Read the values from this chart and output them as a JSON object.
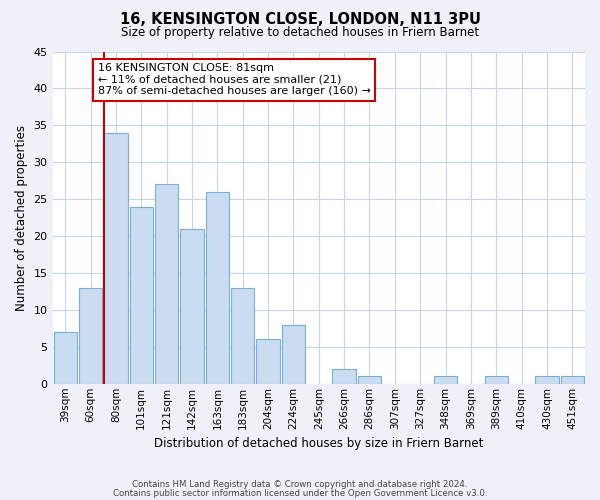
{
  "title": "16, KENSINGTON CLOSE, LONDON, N11 3PU",
  "subtitle": "Size of property relative to detached houses in Friern Barnet",
  "xlabel": "Distribution of detached houses by size in Friern Barnet",
  "ylabel": "Number of detached properties",
  "bin_labels": [
    "39sqm",
    "60sqm",
    "80sqm",
    "101sqm",
    "121sqm",
    "142sqm",
    "163sqm",
    "183sqm",
    "204sqm",
    "224sqm",
    "245sqm",
    "266sqm",
    "286sqm",
    "307sqm",
    "327sqm",
    "348sqm",
    "369sqm",
    "389sqm",
    "410sqm",
    "430sqm",
    "451sqm"
  ],
  "bin_values": [
    7,
    13,
    34,
    24,
    27,
    21,
    26,
    13,
    6,
    8,
    0,
    2,
    1,
    0,
    0,
    1,
    0,
    1,
    0,
    1,
    1
  ],
  "bar_color": "#c9dcf0",
  "bar_edge_color": "#7aafd4",
  "property_line_color": "#cc0000",
  "annotation_text": "16 KENSINGTON CLOSE: 81sqm\n← 11% of detached houses are smaller (21)\n87% of semi-detached houses are larger (160) →",
  "annotation_box_color": "#ffffff",
  "annotation_box_edge_color": "#cc0000",
  "ylim": [
    0,
    45
  ],
  "yticks": [
    0,
    5,
    10,
    15,
    20,
    25,
    30,
    35,
    40,
    45
  ],
  "footer_line1": "Contains HM Land Registry data © Crown copyright and database right 2024.",
  "footer_line2": "Contains public sector information licensed under the Open Government Licence v3.0.",
  "bg_color": "#eef2f8",
  "plot_bg_color": "#ffffff",
  "grid_color": "#c8d4e8"
}
